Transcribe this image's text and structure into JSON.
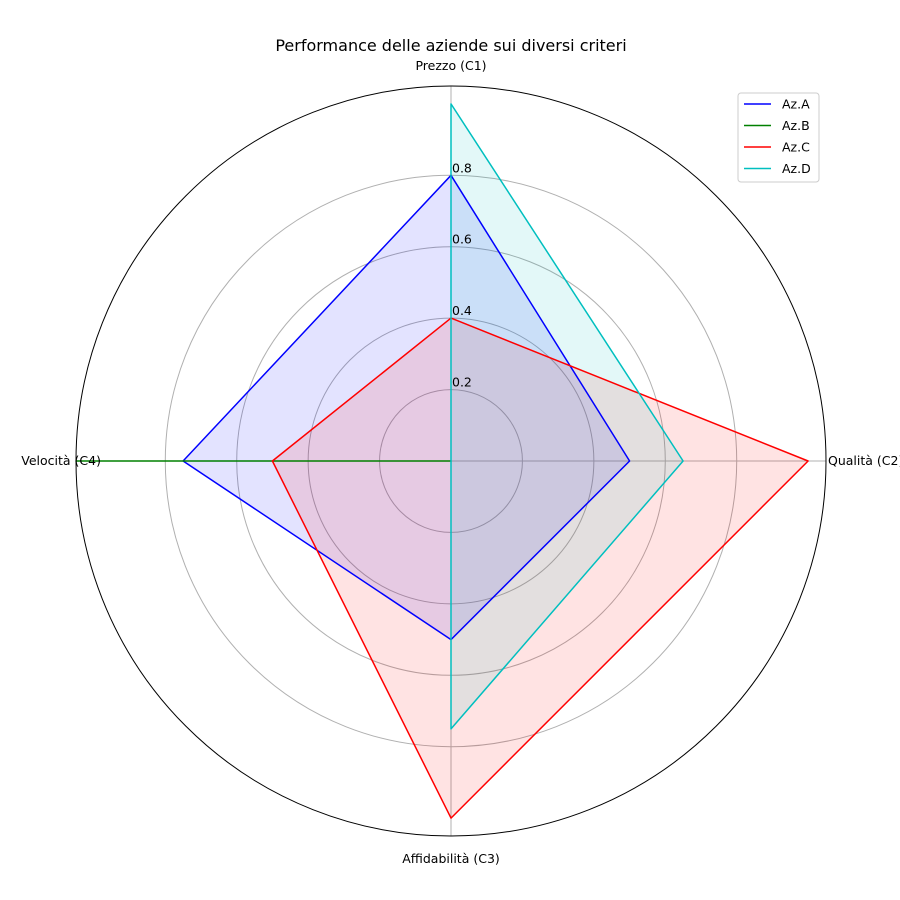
{
  "chart_data": {
    "type": "radar",
    "title": "Performance delle aziende sui diversi criteri",
    "categories": [
      "Prezzo (C1)",
      "Qualità (C2)",
      "Affidabilità (C3)",
      "Velocità (C4)"
    ],
    "r_ticks": [
      0.2,
      0.4,
      0.6,
      0.8
    ],
    "r_tick_labels": [
      "0.2",
      "0.4",
      "0.6",
      "0.8"
    ],
    "rlim": [
      0,
      1.05
    ],
    "grid": true,
    "legend_position": "top-right",
    "series": [
      {
        "name": "Az.A",
        "values": [
          0.8,
          0.5,
          0.5,
          0.75
        ],
        "color": "#0000ff",
        "fill": "#0000ff"
      },
      {
        "name": "Az.B",
        "values": [
          0.0,
          0.0,
          0.0,
          1.05
        ],
        "color": "#008000",
        "fill": "#008000"
      },
      {
        "name": "Az.C",
        "values": [
          0.4,
          1.0,
          1.0,
          0.5
        ],
        "color": "#ff0000",
        "fill": "#ff0000"
      },
      {
        "name": "Az.D",
        "values": [
          1.0,
          0.65,
          0.75,
          0.0
        ],
        "color": "#00bfbf",
        "fill": "#00bfbf"
      }
    ]
  }
}
